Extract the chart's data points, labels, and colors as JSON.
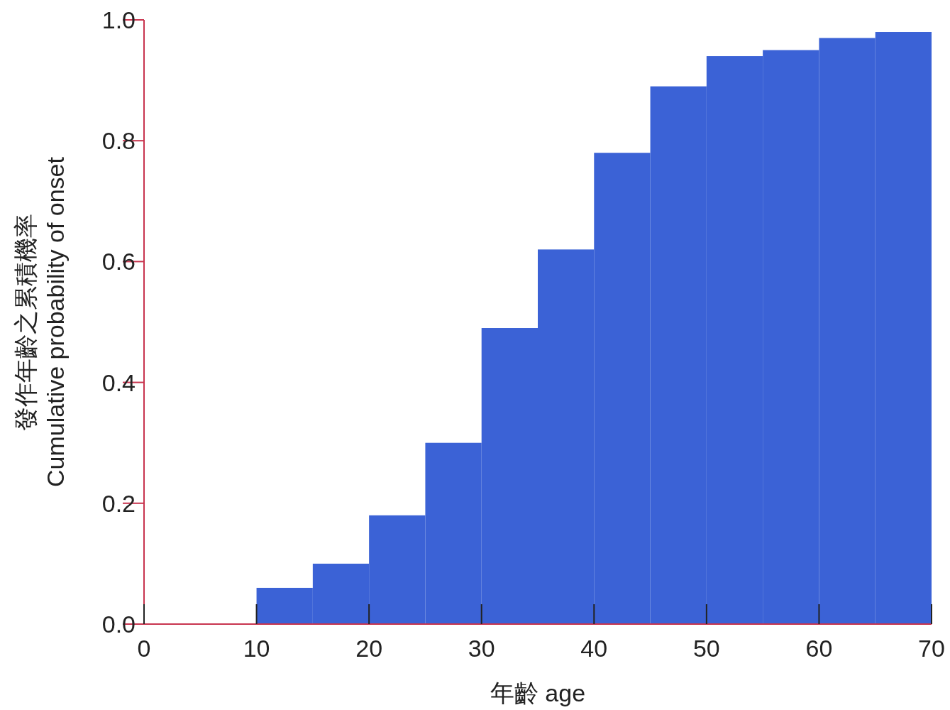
{
  "chart_data": {
    "type": "histogram",
    "xlabel": "年齡 age",
    "ylabel": "發作年齡之累積機率\nCumulative probability of onset",
    "bins": [
      5,
      10,
      15,
      20,
      25,
      30,
      35,
      40,
      45,
      50,
      55,
      60,
      65,
      70
    ],
    "values": [
      0.0,
      0.06,
      0.1,
      0.18,
      0.3,
      0.49,
      0.62,
      0.78,
      0.89,
      0.94,
      0.95,
      0.97,
      0.98
    ],
    "color": "#3b62d6",
    "xlim": [
      0,
      70
    ],
    "xticks": [
      0,
      10,
      20,
      30,
      40,
      50,
      60,
      70
    ],
    "ylim": [
      0,
      1
    ],
    "yticks": [
      {
        "value": 0,
        "label": "0.0"
      },
      {
        "value": 0.2,
        "label": "0.2"
      },
      {
        "value": 0.4,
        "label": "0.4"
      },
      {
        "value": 0.6,
        "label": "0.6"
      },
      {
        "value": 0.8,
        "label": "0.8"
      },
      {
        "value": 1,
        "label": "1.0"
      }
    ]
  }
}
